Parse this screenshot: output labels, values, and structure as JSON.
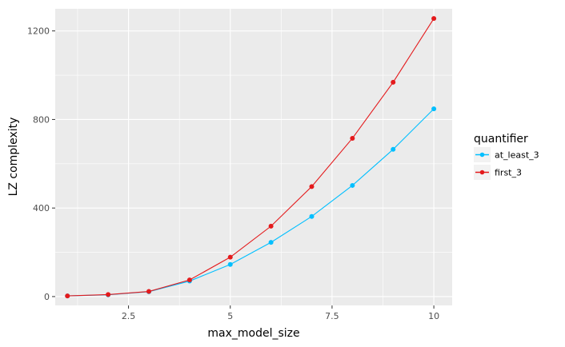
{
  "chart_data": {
    "type": "line",
    "xlabel": "max_model_size",
    "ylabel": "LZ complexity",
    "x": [
      1,
      2,
      3,
      4,
      5,
      6,
      7,
      8,
      9,
      10
    ],
    "xlim": [
      0.7,
      10.45
    ],
    "ylim": [
      -40,
      1300
    ],
    "xticks": [
      2.5,
      5,
      7.5,
      10
    ],
    "xtick_labels": [
      "2.5",
      "5",
      "7.5",
      "10"
    ],
    "yticks": [
      0,
      400,
      800,
      1200
    ],
    "ytick_labels": [
      "0",
      "400",
      "800",
      "1200"
    ],
    "grid": true,
    "legend_position": "right",
    "legend_title": "quantifier",
    "series": [
      {
        "name": "at_least_3",
        "color": "#00BFFF",
        "values": [
          3,
          8,
          22,
          70,
          145,
          245,
          362,
          502,
          665,
          848
        ]
      },
      {
        "name": "first_3",
        "color": "#E41A1C",
        "values": [
          3,
          9,
          23,
          75,
          178,
          318,
          497,
          715,
          968,
          1256
        ]
      }
    ]
  }
}
